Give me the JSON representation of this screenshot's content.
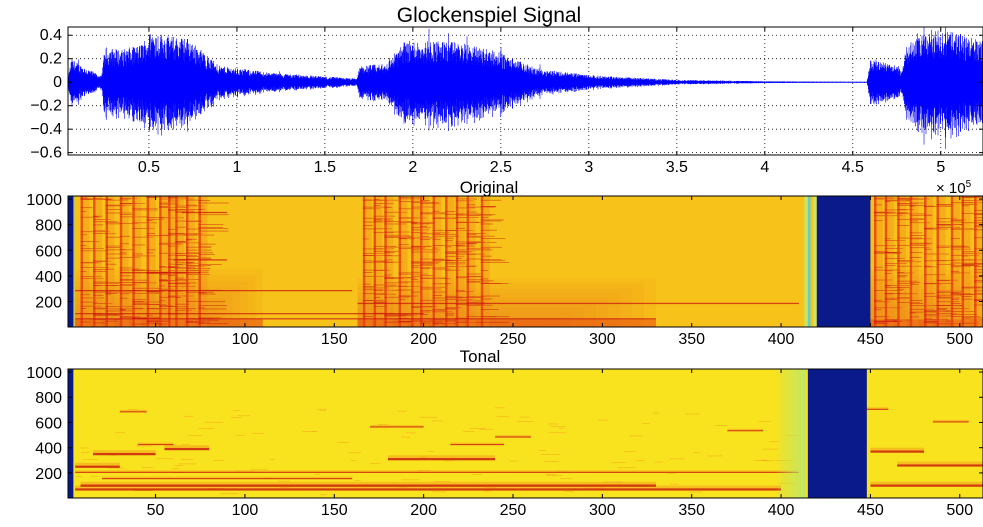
{
  "chart_data": [
    {
      "type": "line",
      "title": "Glockenspiel Signal",
      "xlabel": "",
      "ylabel": "",
      "x_multiplier_label": "× 10",
      "x_multiplier_exponent": "5",
      "xlim": [
        0.04,
        5.24
      ],
      "ylim": [
        -0.62,
        0.47
      ],
      "xticks": [
        0.5,
        1,
        1.5,
        2,
        2.5,
        3,
        3.5,
        4,
        4.5,
        5
      ],
      "xtick_labels": [
        "0.5",
        "1",
        "1.5",
        "2",
        "2.5",
        "3",
        "3.5",
        "4",
        "4.5",
        "5"
      ],
      "yticks": [
        -0.6,
        -0.4,
        -0.2,
        0,
        0.2,
        0.4
      ],
      "ytick_labels": [
        "−0.6",
        "−0.4",
        "−0.2",
        "0",
        "0.2",
        "0.4"
      ],
      "grid": true,
      "line_color": "#0000ff",
      "envelope_points": [
        {
          "x": 0.04,
          "amp": 0.04
        },
        {
          "x": 0.06,
          "amp": 0.2
        },
        {
          "x": 0.12,
          "amp": 0.14
        },
        {
          "x": 0.23,
          "amp": 0.05
        },
        {
          "x": 0.25,
          "amp": 0.3
        },
        {
          "x": 0.35,
          "amp": 0.28
        },
        {
          "x": 0.45,
          "amp": 0.32
        },
        {
          "x": 0.52,
          "amp": 0.45
        },
        {
          "x": 0.6,
          "amp": 0.4
        },
        {
          "x": 0.72,
          "amp": 0.38
        },
        {
          "x": 0.78,
          "amp": 0.3
        },
        {
          "x": 0.9,
          "amp": 0.14
        },
        {
          "x": 1.2,
          "amp": 0.08
        },
        {
          "x": 1.5,
          "amp": 0.05
        },
        {
          "x": 1.68,
          "amp": 0.03
        },
        {
          "x": 1.7,
          "amp": 0.14
        },
        {
          "x": 1.85,
          "amp": 0.16
        },
        {
          "x": 1.95,
          "amp": 0.35
        },
        {
          "x": 2.1,
          "amp": 0.36
        },
        {
          "x": 2.25,
          "amp": 0.34
        },
        {
          "x": 2.45,
          "amp": 0.28
        },
        {
          "x": 2.7,
          "amp": 0.12
        },
        {
          "x": 3.0,
          "amp": 0.06
        },
        {
          "x": 3.5,
          "amp": 0.02
        },
        {
          "x": 4.0,
          "amp": 0.008
        },
        {
          "x": 4.58,
          "amp": 0.002
        },
        {
          "x": 4.6,
          "amp": 0.2
        },
        {
          "x": 4.7,
          "amp": 0.18
        },
        {
          "x": 4.78,
          "amp": 0.1
        },
        {
          "x": 4.8,
          "amp": 0.32
        },
        {
          "x": 4.95,
          "amp": 0.45
        },
        {
          "x": 5.1,
          "amp": 0.42
        },
        {
          "x": 5.24,
          "amp": 0.35
        }
      ]
    },
    {
      "type": "heatmap",
      "title": "Original",
      "xlabel": "",
      "ylabel": "",
      "xlim": [
        1,
        513
      ],
      "ylim": [
        1,
        1024
      ],
      "xticks": [
        50,
        100,
        150,
        200,
        250,
        300,
        350,
        400,
        450,
        500
      ],
      "xtick_labels": [
        "50",
        "100",
        "150",
        "200",
        "250",
        "300",
        "350",
        "400",
        "450",
        "500"
      ],
      "yticks": [
        200,
        400,
        600,
        800,
        1000
      ],
      "ytick_labels": [
        "200",
        "400",
        "600",
        "800",
        "1000"
      ],
      "colormap": "autumn",
      "colors": {
        "background": "#f7c21a",
        "strong": "#c8100d",
        "medium": "#e8410f",
        "light": "#f28a1c",
        "empty": "#0a1a8a",
        "cyan": "#5fd0c8",
        "edge": "#c7e86a"
      },
      "empty_regions": [
        [
          1,
          4
        ],
        [
          420,
          450
        ]
      ],
      "cyan_lines": [
        3,
        415
      ],
      "green_lines": [
        413,
        418
      ],
      "onsets": [
        8,
        15,
        22,
        30,
        37,
        45,
        52,
        57,
        61,
        67,
        74,
        166,
        172,
        178,
        186,
        193,
        198,
        205,
        212,
        218,
        224,
        232,
        452,
        458,
        465,
        472,
        480,
        487,
        495,
        501,
        508
      ],
      "decay_regions": [
        {
          "x_start": 5,
          "x_end": 110,
          "freq_max": 450
        },
        {
          "x_start": 163,
          "x_end": 330,
          "freq_max": 380
        },
        {
          "x_start": 450,
          "x_end": 513,
          "freq_max": 450
        }
      ],
      "sustained_lines": [
        {
          "freq": 60,
          "x_start": 5,
          "x_end": 330
        },
        {
          "freq": 100,
          "x_start": 5,
          "x_end": 200
        },
        {
          "freq": 180,
          "x_start": 163,
          "x_end": 410
        },
        {
          "freq": 280,
          "x_start": 5,
          "x_end": 160
        },
        {
          "freq": 420,
          "x_start": 30,
          "x_end": 75
        },
        {
          "freq": 520,
          "x_start": 60,
          "x_end": 90
        },
        {
          "freq": 890,
          "x_start": 65,
          "x_end": 90
        }
      ]
    },
    {
      "type": "heatmap",
      "title": "Tonal",
      "xlabel": "",
      "ylabel": "",
      "xlim": [
        1,
        513
      ],
      "ylim": [
        1,
        1024
      ],
      "xticks": [
        50,
        100,
        150,
        200,
        250,
        300,
        350,
        400,
        450,
        500
      ],
      "xtick_labels": [
        "50",
        "100",
        "150",
        "200",
        "250",
        "300",
        "350",
        "400",
        "450",
        "500"
      ],
      "yticks": [
        200,
        400,
        600,
        800,
        1000
      ],
      "ytick_labels": [
        "200",
        "400",
        "600",
        "800",
        "1000"
      ],
      "colormap": "autumn",
      "colors": {
        "background": "#f9e21e",
        "strong": "#c8100d",
        "medium": "#e8410f",
        "light": "#f0901c",
        "empty": "#0a1a8a",
        "edge": "#b9e86e"
      },
      "empty_regions": [
        [
          1,
          4
        ],
        [
          415,
          448
        ]
      ],
      "edge_region": [
        398,
        414
      ],
      "tonal_lines": [
        {
          "freq": 60,
          "x_start": 5,
          "x_end": 400,
          "w": 2
        },
        {
          "freq": 90,
          "x_start": 8,
          "x_end": 330,
          "w": 2
        },
        {
          "freq": 200,
          "x_start": 5,
          "x_end": 410,
          "w": 1
        },
        {
          "freq": 240,
          "x_start": 5,
          "x_end": 30,
          "w": 2
        },
        {
          "freq": 340,
          "x_start": 15,
          "x_end": 50,
          "w": 2
        },
        {
          "freq": 380,
          "x_start": 55,
          "x_end": 80,
          "w": 2
        },
        {
          "freq": 300,
          "x_start": 180,
          "x_end": 240,
          "w": 2
        },
        {
          "freq": 420,
          "x_start": 215,
          "x_end": 245,
          "w": 1
        },
        {
          "freq": 560,
          "x_start": 170,
          "x_end": 200,
          "w": 1
        },
        {
          "freq": 480,
          "x_start": 240,
          "x_end": 260,
          "w": 1
        },
        {
          "freq": 150,
          "x_start": 20,
          "x_end": 160,
          "w": 1
        },
        {
          "freq": 360,
          "x_start": 450,
          "x_end": 480,
          "w": 2
        },
        {
          "freq": 250,
          "x_start": 465,
          "x_end": 513,
          "w": 2
        },
        {
          "freq": 90,
          "x_start": 450,
          "x_end": 513,
          "w": 2
        },
        {
          "freq": 600,
          "x_start": 485,
          "x_end": 505,
          "w": 1
        },
        {
          "freq": 680,
          "x_start": 30,
          "x_end": 45,
          "w": 1
        },
        {
          "freq": 420,
          "x_start": 40,
          "x_end": 60,
          "w": 1
        },
        {
          "freq": 530,
          "x_start": 370,
          "x_end": 390,
          "w": 1
        },
        {
          "freq": 700,
          "x_start": 440,
          "x_end": 460,
          "w": 1
        }
      ]
    }
  ]
}
